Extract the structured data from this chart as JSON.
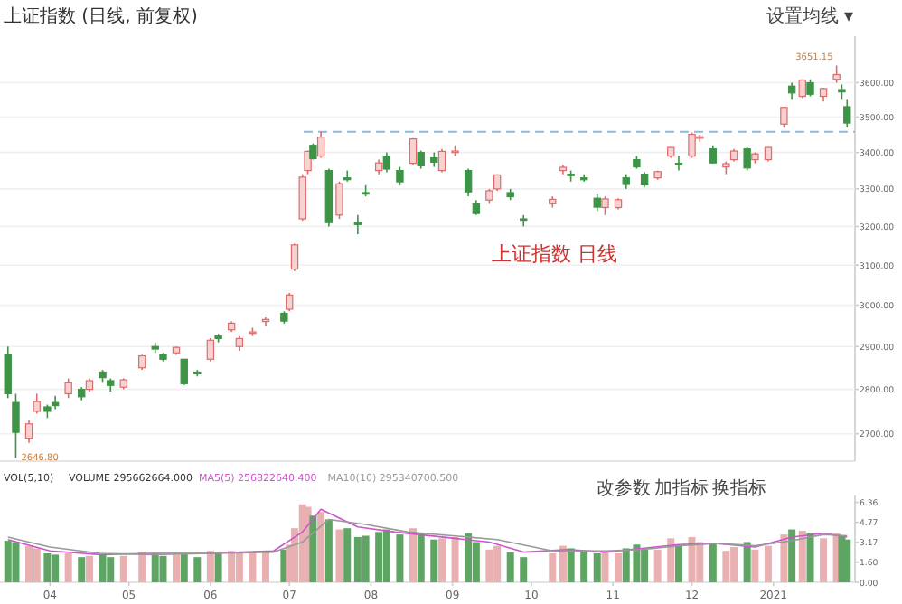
{
  "chart_data": [
    {
      "type": "candlestick",
      "title": "上证指数 (日线, 前复权)",
      "log": "y",
      "tick_labels": "y",
      "grid": "y",
      "x": [
        "2020-03-16",
        "2020-03-19",
        "2020-03-24",
        "2020-03-27",
        "2020-03-31",
        "2020-04-03",
        "2020-04-08",
        "2020-04-13",
        "2020-04-16",
        "2020-04-21",
        "2020-04-24",
        "2020-04-29",
        "2020-05-06",
        "2020-05-11",
        "2020-05-14",
        "2020-05-19",
        "2020-05-22",
        "2020-05-27",
        "2020-06-01",
        "2020-06-04",
        "2020-06-09",
        "2020-06-12",
        "2020-06-17",
        "2020-06-22",
        "2020-06-29",
        "2020-07-01",
        "2020-07-03",
        "2020-07-06",
        "2020-07-08",
        "2020-07-10",
        "2020-07-13",
        "2020-07-16",
        "2020-07-20",
        "2020-07-23",
        "2020-07-27",
        "2020-07-30",
        "2020-08-04",
        "2020-08-07",
        "2020-08-12",
        "2020-08-17",
        "2020-08-20",
        "2020-08-25",
        "2020-08-28",
        "2020-09-02",
        "2020-09-07",
        "2020-09-10",
        "2020-09-15",
        "2020-09-18",
        "2020-09-23",
        "2020-09-28",
        "2020-10-09",
        "2020-10-13",
        "2020-10-16",
        "2020-10-21",
        "2020-10-26",
        "2020-10-29",
        "2020-11-03",
        "2020-11-06",
        "2020-11-10",
        "2020-11-13",
        "2020-11-18",
        "2020-11-23",
        "2020-11-26",
        "2020-12-01",
        "2020-12-04",
        "2020-12-09",
        "2020-12-14",
        "2020-12-17",
        "2020-12-22",
        "2020-12-25",
        "2020-12-30",
        "2021-01-05",
        "2021-01-08",
        "2021-01-12",
        "2021-01-15",
        "2021-01-20",
        "2021-01-25",
        "2021-01-27",
        "2021-01-29"
      ],
      "ohlc": [
        [
          2880,
          2900,
          2780,
          2790
        ],
        [
          2770,
          2790,
          2646.8,
          2703
        ],
        [
          2690,
          2730,
          2680,
          2722
        ],
        [
          2750,
          2790,
          2745,
          2772
        ],
        [
          2760,
          2765,
          2735,
          2750
        ],
        [
          2770,
          2785,
          2755,
          2763
        ],
        [
          2790,
          2825,
          2780,
          2815
        ],
        [
          2800,
          2805,
          2775,
          2783
        ],
        [
          2800,
          2825,
          2795,
          2820
        ],
        [
          2840,
          2845,
          2815,
          2827
        ],
        [
          2820,
          2825,
          2795,
          2809
        ],
        [
          2805,
          2825,
          2800,
          2822
        ],
        [
          2850,
          2880,
          2845,
          2878
        ],
        [
          2900,
          2910,
          2885,
          2894
        ],
        [
          2880,
          2885,
          2865,
          2870
        ],
        [
          2885,
          2900,
          2880,
          2898
        ],
        [
          2870,
          2870,
          2810,
          2813
        ],
        [
          2840,
          2845,
          2830,
          2836
        ],
        [
          2870,
          2920,
          2865,
          2915
        ],
        [
          2925,
          2930,
          2910,
          2919
        ],
        [
          2940,
          2960,
          2935,
          2956
        ],
        [
          2900,
          2925,
          2890,
          2919
        ],
        [
          2935,
          2945,
          2925,
          2935
        ],
        [
          2960,
          2970,
          2950,
          2965
        ],
        [
          2980,
          2985,
          2955,
          2961
        ],
        [
          2990,
          3030,
          2985,
          3025
        ],
        [
          3090,
          3155,
          3085,
          3152
        ],
        [
          3220,
          3340,
          3215,
          3332
        ],
        [
          3350,
          3405,
          3340,
          3403
        ],
        [
          3420,
          3425,
          3380,
          3383
        ],
        [
          3390,
          3458,
          3385,
          3443
        ],
        [
          3350,
          3355,
          3200,
          3210
        ],
        [
          3230,
          3320,
          3220,
          3314
        ],
        [
          3330,
          3350,
          3320,
          3325
        ],
        [
          3210,
          3230,
          3180,
          3205
        ],
        [
          3290,
          3310,
          3280,
          3286
        ],
        [
          3350,
          3380,
          3340,
          3371
        ],
        [
          3390,
          3400,
          3345,
          3354
        ],
        [
          3350,
          3360,
          3310,
          3319
        ],
        [
          3370,
          3440,
          3365,
          3438
        ],
        [
          3400,
          3405,
          3355,
          3363
        ],
        [
          3385,
          3400,
          3360,
          3373
        ],
        [
          3350,
          3410,
          3345,
          3403
        ],
        [
          3400,
          3420,
          3390,
          3404
        ],
        [
          3350,
          3355,
          3280,
          3292
        ],
        [
          3260,
          3270,
          3230,
          3234
        ],
        [
          3270,
          3300,
          3260,
          3295
        ],
        [
          3300,
          3340,
          3295,
          3338
        ],
        [
          3290,
          3300,
          3270,
          3279
        ],
        [
          3220,
          3230,
          3200,
          3217
        ],
        [
          3260,
          3280,
          3250,
          3272
        ],
        [
          3350,
          3365,
          3340,
          3359
        ],
        [
          3340,
          3350,
          3320,
          3336
        ],
        [
          3330,
          3340,
          3320,
          3325
        ],
        [
          3275,
          3285,
          3240,
          3251
        ],
        [
          3250,
          3280,
          3230,
          3273
        ],
        [
          3250,
          3275,
          3245,
          3271
        ],
        [
          3330,
          3340,
          3300,
          3312
        ],
        [
          3380,
          3390,
          3355,
          3360
        ],
        [
          3340,
          3345,
          3305,
          3311
        ],
        [
          3330,
          3350,
          3325,
          3347
        ],
        [
          3390,
          3415,
          3385,
          3414
        ],
        [
          3370,
          3390,
          3350,
          3369
        ],
        [
          3390,
          3456,
          3385,
          3451
        ],
        [
          3440,
          3450,
          3430,
          3444
        ],
        [
          3410,
          3420,
          3370,
          3371
        ],
        [
          3360,
          3375,
          3340,
          3369
        ],
        [
          3380,
          3410,
          3375,
          3404
        ],
        [
          3410,
          3415,
          3350,
          3357
        ],
        [
          3380,
          3400,
          3370,
          3396
        ],
        [
          3380,
          3415,
          3375,
          3414
        ],
        [
          3480,
          3530,
          3470,
          3528
        ],
        [
          3590,
          3600,
          3550,
          3570
        ],
        [
          3560,
          3610,
          3555,
          3608
        ],
        [
          3600,
          3610,
          3560,
          3566
        ],
        [
          3560,
          3585,
          3545,
          3583
        ],
        [
          3610,
          3651.15,
          3600,
          3624
        ],
        [
          3580,
          3595,
          3550,
          3573
        ],
        [
          3530,
          3550,
          3470,
          3483
        ]
      ],
      "xlim": [
        "2020-03-13",
        "2021-02-01"
      ],
      "ylim": [
        2640,
        3740
      ],
      "yticks": [
        {
          "value": 2700,
          "label": "2700.00"
        },
        {
          "value": 2800,
          "label": "2800.00"
        },
        {
          "value": 2900,
          "label": "2900.00"
        },
        {
          "value": 3000,
          "label": "3000.00"
        },
        {
          "value": 3100,
          "label": "3100.00"
        },
        {
          "value": 3200,
          "label": "3200.00"
        },
        {
          "value": 3300,
          "label": "3300.00"
        },
        {
          "value": 3400,
          "label": "3400.00"
        },
        {
          "value": 3500,
          "label": "3500.00"
        },
        {
          "value": 3600,
          "label": "3600.00"
        }
      ],
      "ref_lines": [
        {
          "axis": "y",
          "value": 3458,
          "color": "#8fb8dc",
          "line_style": "dashed"
        }
      ],
      "annotations": [
        "上证指数 日线",
        "设置均线 ▾",
        {
          "text": "2646.80",
          "x": "2020-03-19",
          "y": 2646.8
        },
        {
          "text": "3651.15",
          "x": "2021-01-25",
          "y": 3651.15
        }
      ]
    },
    {
      "type": "bar",
      "title": "VOL(5,10)",
      "grid": false,
      "x": [
        "2020-03-16",
        "2020-03-19",
        "2020-03-24",
        "2020-03-27",
        "2020-03-31",
        "2020-04-03",
        "2020-04-08",
        "2020-04-13",
        "2020-04-16",
        "2020-04-21",
        "2020-04-24",
        "2020-04-29",
        "2020-05-06",
        "2020-05-11",
        "2020-05-14",
        "2020-05-19",
        "2020-05-22",
        "2020-05-27",
        "2020-06-01",
        "2020-06-04",
        "2020-06-09",
        "2020-06-12",
        "2020-06-17",
        "2020-06-22",
        "2020-06-29",
        "2020-07-01",
        "2020-07-03",
        "2020-07-06",
        "2020-07-08",
        "2020-07-10",
        "2020-07-13",
        "2020-07-16",
        "2020-07-20",
        "2020-07-23",
        "2020-07-27",
        "2020-07-30",
        "2020-08-04",
        "2020-08-07",
        "2020-08-12",
        "2020-08-17",
        "2020-08-20",
        "2020-08-25",
        "2020-08-28",
        "2020-09-02",
        "2020-09-07",
        "2020-09-10",
        "2020-09-15",
        "2020-09-18",
        "2020-09-23",
        "2020-09-28",
        "2020-10-09",
        "2020-10-13",
        "2020-10-16",
        "2020-10-21",
        "2020-10-26",
        "2020-10-29",
        "2020-11-03",
        "2020-11-06",
        "2020-11-10",
        "2020-11-13",
        "2020-11-18",
        "2020-11-23",
        "2020-11-26",
        "2020-12-01",
        "2020-12-04",
        "2020-12-09",
        "2020-12-14",
        "2020-12-17",
        "2020-12-22",
        "2020-12-25",
        "2020-12-30",
        "2021-01-05",
        "2021-01-08",
        "2021-01-12",
        "2021-01-15",
        "2021-01-20",
        "2021-01-25",
        "2021-01-27",
        "2021-01-29"
      ],
      "series": [
        {
          "type": "bar",
          "colors": [
            "#5ea462",
            "#5ea462",
            "#e8b0b0",
            "#e8b0b0",
            "#5ea462",
            "#5ea462",
            "#e8b0b0",
            "#5ea462",
            "#e8b0b0",
            "#5ea462",
            "#5ea462",
            "#e8b0b0",
            "#e8b0b0",
            "#5ea462",
            "#5ea462",
            "#e8b0b0",
            "#5ea462",
            "#5ea462",
            "#e8b0b0",
            "#5ea462",
            "#e8b0b0",
            "#e8b0b0",
            "#e8b0b0",
            "#e8b0b0",
            "#5ea462",
            "#e8b0b0",
            "#e8b0b0",
            "#e8b0b0",
            "#e8b0b0",
            "#5ea462",
            "#e8b0b0",
            "#5ea462",
            "#e8b0b0",
            "#5ea462",
            "#5ea462",
            "#5ea462",
            "#5ea462",
            "#5ea462",
            "#5ea462",
            "#e8b0b0",
            "#5ea462",
            "#5ea462",
            "#e8b0b0",
            "#e8b0b0",
            "#5ea462",
            "#5ea462",
            "#e8b0b0",
            "#e8b0b0",
            "#5ea462",
            "#5ea462",
            "#e8b0b0",
            "#e8b0b0",
            "#5ea462",
            "#5ea462",
            "#5ea462",
            "#e8b0b0",
            "#e8b0b0",
            "#5ea462",
            "#5ea462",
            "#5ea462",
            "#e8b0b0",
            "#e8b0b0",
            "#5ea462",
            "#e8b0b0",
            "#e8b0b0",
            "#5ea462",
            "#e8b0b0",
            "#e8b0b0",
            "#5ea462",
            "#e8b0b0",
            "#e8b0b0",
            "#e8b0b0",
            "#5ea462",
            "#e8b0b0",
            "#5ea462",
            "#e8b0b0",
            "#e8b0b0",
            "#5ea462",
            "#5ea462"
          ],
          "values": [
            3.3,
            3.2,
            2.9,
            2.7,
            2.3,
            2.2,
            2.3,
            2.0,
            2.1,
            2.2,
            2.0,
            2.1,
            2.4,
            2.3,
            2.1,
            2.2,
            2.3,
            2.0,
            2.5,
            2.4,
            2.5,
            2.3,
            2.4,
            2.5,
            2.6,
            3.0,
            4.3,
            6.2,
            6.0,
            5.3,
            5.6,
            5.0,
            4.2,
            4.3,
            3.6,
            3.7,
            4.0,
            4.2,
            3.8,
            4.3,
            3.9,
            3.4,
            3.5,
            3.6,
            3.9,
            3.2,
            2.6,
            2.9,
            2.4,
            2.0,
            2.3,
            2.9,
            2.7,
            2.5,
            2.3,
            2.4,
            2.3,
            2.7,
            3.0,
            2.6,
            2.6,
            3.5,
            2.9,
            3.6,
            3.2,
            3.1,
            2.5,
            2.8,
            3.2,
            2.6,
            2.9,
            3.8,
            4.2,
            4.1,
            3.9,
            3.5,
            3.9,
            3.7,
            3.4
          ]
        },
        {
          "type": "line",
          "name": "MA5(5) 256822640.400",
          "color": "#cc55cc",
          "x": [
            "2020-03-16",
            "2020-04-01",
            "2020-04-20",
            "2020-05-10",
            "2020-06-01",
            "2020-06-25",
            "2020-07-06",
            "2020-07-13",
            "2020-07-27",
            "2020-08-10",
            "2020-08-28",
            "2020-09-15",
            "2020-09-28",
            "2020-10-15",
            "2020-10-29",
            "2020-11-12",
            "2020-11-26",
            "2020-12-10",
            "2020-12-25",
            "2021-01-08",
            "2021-01-20",
            "2021-01-29"
          ],
          "values": [
            3.4,
            2.5,
            2.2,
            2.3,
            2.3,
            2.5,
            4.0,
            5.8,
            4.4,
            4.0,
            3.6,
            3.2,
            2.4,
            2.6,
            2.4,
            2.7,
            3.0,
            3.1,
            2.8,
            3.6,
            3.9,
            3.6
          ]
        },
        {
          "type": "line",
          "name": "MA10(10) 295340700.500",
          "color": "#999999",
          "x": [
            "2020-03-16",
            "2020-04-01",
            "2020-04-20",
            "2020-05-10",
            "2020-06-01",
            "2020-06-25",
            "2020-07-06",
            "2020-07-16",
            "2020-07-30",
            "2020-08-15",
            "2020-09-01",
            "2020-09-18",
            "2020-10-09",
            "2020-10-29",
            "2020-11-12",
            "2020-11-26",
            "2020-12-10",
            "2020-12-25",
            "2021-01-08",
            "2021-01-20",
            "2021-01-29"
          ],
          "values": [
            3.6,
            2.8,
            2.3,
            2.2,
            2.3,
            2.4,
            3.2,
            5.0,
            4.6,
            4.0,
            3.7,
            3.4,
            2.5,
            2.5,
            2.6,
            2.9,
            3.1,
            2.9,
            3.3,
            3.8,
            3.7
          ]
        }
      ],
      "xlim": [
        "2020-03-13",
        "2021-02-01"
      ],
      "ylim": [
        0,
        6.9
      ],
      "yticks": [
        {
          "value": 0,
          "label": "0.00"
        },
        {
          "value": 1.6,
          "label": "1.60"
        },
        {
          "value": 3.17,
          "label": "3.17"
        },
        {
          "value": 4.77,
          "label": "4.77"
        },
        {
          "value": 6.36,
          "label": "6.36"
        }
      ],
      "xticks": [
        {
          "value": "2020-04-01",
          "label": "04"
        },
        {
          "value": "2020-05-01",
          "label": "05"
        },
        {
          "value": "2020-06-01",
          "label": "06"
        },
        {
          "value": "2020-07-01",
          "label": "07"
        },
        {
          "value": "2020-08-01",
          "label": "08"
        },
        {
          "value": "2020-09-01",
          "label": "09"
        },
        {
          "value": "2020-10-01",
          "label": "10"
        },
        {
          "value": "2020-11-01",
          "label": "11"
        },
        {
          "value": "2020-12-01",
          "label": "12"
        },
        {
          "value": "2021-01-01",
          "label": "2021"
        }
      ],
      "annotations": [
        "VOLUME 295662664.000",
        "改参数",
        "加指标",
        "换指标"
      ]
    }
  ]
}
